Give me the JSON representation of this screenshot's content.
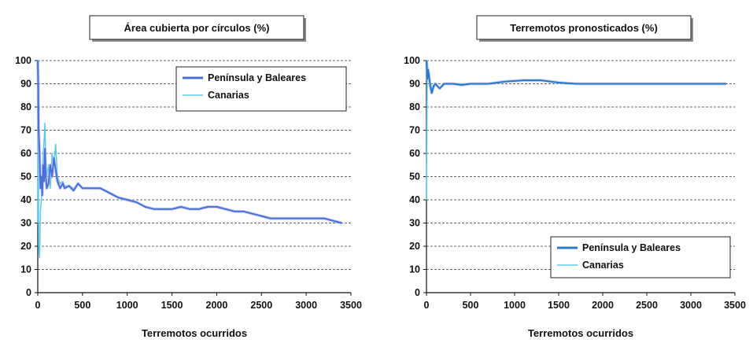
{
  "chart_data": [
    {
      "type": "line",
      "title": "Área cubierta por círculos (%)",
      "xlabel": "Terremotos ocurridos",
      "ylabel": "",
      "xlim": [
        0,
        3500
      ],
      "ylim": [
        0,
        100
      ],
      "x_ticks": [
        0,
        500,
        1000,
        1500,
        2000,
        2500,
        3000,
        3500
      ],
      "y_ticks": [
        0,
        10,
        20,
        30,
        40,
        50,
        60,
        70,
        80,
        90,
        100
      ],
      "grid": "horizontal dashed",
      "legend_position": "top-right",
      "series": [
        {
          "name": "Península y Baleares",
          "color": "#4a6fd6",
          "x": [
            0,
            5,
            10,
            20,
            30,
            40,
            50,
            60,
            70,
            80,
            90,
            100,
            120,
            140,
            160,
            180,
            200,
            220,
            250,
            280,
            300,
            350,
            400,
            450,
            500,
            600,
            700,
            800,
            900,
            1000,
            1100,
            1200,
            1300,
            1400,
            1500,
            1600,
            1700,
            1800,
            1900,
            2000,
            2100,
            2200,
            2300,
            2400,
            2500,
            2600,
            2700,
            2800,
            2900,
            3000,
            3100,
            3200,
            3300,
            3400
          ],
          "values": [
            100,
            90,
            70,
            60,
            45,
            50,
            42,
            55,
            48,
            62,
            50,
            45,
            47,
            55,
            50,
            58,
            53,
            48,
            45,
            47,
            45,
            46,
            44,
            47,
            45,
            45,
            45,
            43,
            41,
            40,
            39,
            37,
            36,
            36,
            36,
            37,
            36,
            36,
            37,
            37,
            36,
            35,
            35,
            34,
            33,
            32,
            32,
            32,
            32,
            32,
            32,
            32,
            31,
            30
          ]
        },
        {
          "name": "Canarias",
          "color": "#5cc8e8",
          "x": [
            0,
            5,
            10,
            20,
            30,
            40,
            50,
            60,
            70,
            80,
            90,
            100,
            120,
            140,
            160,
            180,
            200,
            220,
            250,
            280,
            300,
            350,
            400
          ],
          "values": [
            30,
            100,
            20,
            15,
            35,
            40,
            45,
            60,
            65,
            73,
            55,
            50,
            55,
            45,
            60,
            55,
            64,
            50,
            47,
            48,
            46,
            46,
            45
          ]
        }
      ]
    },
    {
      "type": "line",
      "title": "Terremotos pronosticados (%)",
      "xlabel": "Terremotos ocurridos",
      "ylabel": "",
      "xlim": [
        0,
        3500
      ],
      "ylim": [
        0,
        100
      ],
      "x_ticks": [
        0,
        500,
        1000,
        1500,
        2000,
        2500,
        3000,
        3500
      ],
      "y_ticks": [
        0,
        10,
        20,
        30,
        40,
        50,
        60,
        70,
        80,
        90,
        100
      ],
      "grid": "horizontal dashed",
      "legend_position": "bottom-right",
      "series": [
        {
          "name": "Península y Baleares",
          "color": "#2b78c9",
          "x": [
            0,
            10,
            20,
            40,
            60,
            80,
            100,
            150,
            200,
            300,
            400,
            500,
            700,
            900,
            1100,
            1300,
            1500,
            1700,
            2000,
            2300,
            2600,
            2900,
            3200,
            3400
          ],
          "values": [
            100,
            92,
            96,
            90,
            86,
            89,
            90,
            88,
            90,
            90,
            89.5,
            90,
            90,
            91,
            91.5,
            91.5,
            90.5,
            90,
            90,
            90,
            90,
            90,
            90,
            90
          ]
        },
        {
          "name": "Canarias",
          "color": "#5cc8e8",
          "x": [
            0,
            5,
            10,
            20,
            30,
            40,
            60,
            80,
            100,
            150,
            200,
            300,
            400
          ],
          "values": [
            40,
            70,
            100,
            95,
            92,
            88,
            86,
            88,
            90,
            88,
            90,
            90,
            90
          ]
        }
      ]
    }
  ]
}
